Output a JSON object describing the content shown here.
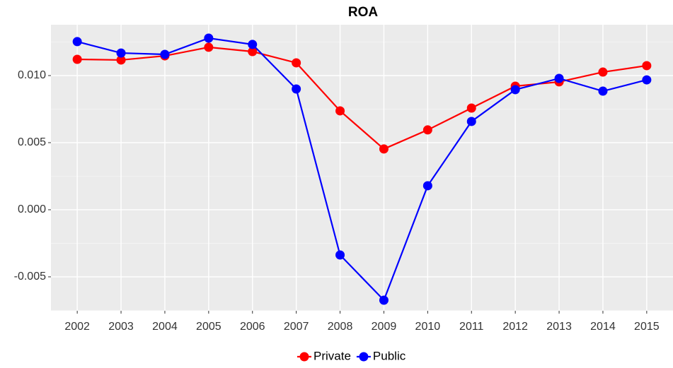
{
  "chart_data": {
    "type": "line",
    "title": "ROA",
    "categories": [
      "2002",
      "2003",
      "2004",
      "2005",
      "2006",
      "2007",
      "2008",
      "2009",
      "2010",
      "2011",
      "2012",
      "2013",
      "2014",
      "2015"
    ],
    "series": [
      {
        "name": "Private",
        "color": "#ff0000",
        "values": [
          0.01121,
          0.01116,
          0.01147,
          0.01211,
          0.01179,
          0.01095,
          0.00737,
          0.00453,
          0.00595,
          0.00758,
          0.00921,
          0.00953,
          0.01026,
          0.01074
        ]
      },
      {
        "name": "Public",
        "color": "#0000ff",
        "values": [
          0.01253,
          0.01168,
          0.01158,
          0.01279,
          0.01232,
          0.009,
          -0.00337,
          -0.00674,
          0.00179,
          0.00658,
          0.00895,
          0.00979,
          0.00884,
          0.00968
        ]
      }
    ],
    "ylim": [
      -0.00753,
      0.01379
    ],
    "yticks": [
      -0.005,
      {
        "value": 0,
        "label": "0.000"
      },
      0.005,
      {
        "value": 0.01,
        "label": "0.010"
      }
    ],
    "grid": true,
    "legend": "bottom"
  }
}
